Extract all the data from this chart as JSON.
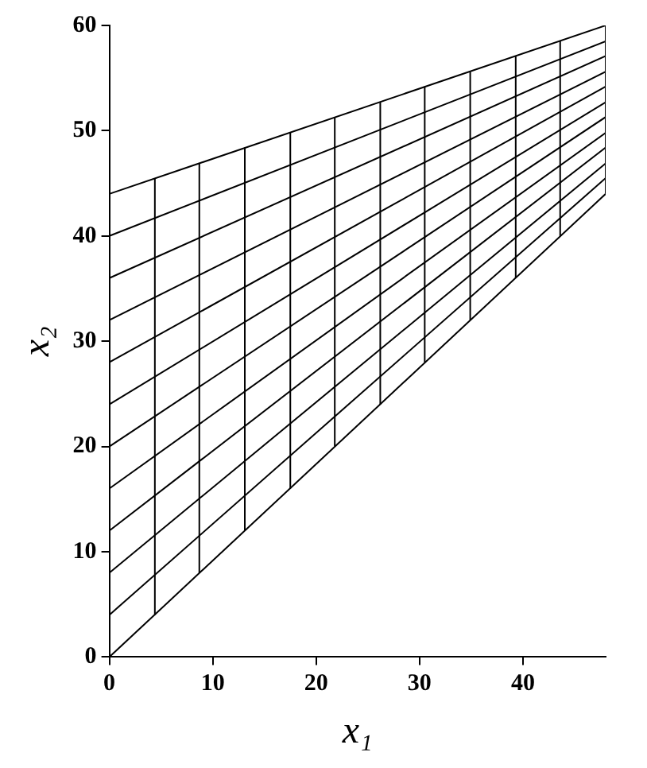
{
  "chart_data": {
    "type": "line",
    "xlabel": "x₁",
    "ylabel": "x₂",
    "xlim": [
      0,
      48
    ],
    "ylim": [
      0,
      60
    ],
    "xticks": [
      0,
      10,
      20,
      30,
      40
    ],
    "yticks": [
      0,
      10,
      20,
      30,
      40,
      50,
      60
    ],
    "grid": false,
    "legend": false,
    "marker": "none",
    "line_style": "solid",
    "series": [
      {
        "color": "#000000",
        "x": [
          0,
          48
        ],
        "values": [
          0,
          44
        ]
      },
      {
        "color": "#000000",
        "x": [
          0,
          48
        ],
        "values": [
          4,
          45.5
        ]
      },
      {
        "color": "#000000",
        "x": [
          0,
          48
        ],
        "values": [
          8,
          46.9
        ]
      },
      {
        "color": "#000000",
        "x": [
          0,
          48
        ],
        "values": [
          12,
          48.4
        ]
      },
      {
        "color": "#000000",
        "x": [
          0,
          48
        ],
        "values": [
          16,
          49.8
        ]
      },
      {
        "color": "#000000",
        "x": [
          0,
          48
        ],
        "values": [
          20,
          51.3
        ]
      },
      {
        "color": "#000000",
        "x": [
          0,
          48
        ],
        "values": [
          24,
          52.7
        ]
      },
      {
        "color": "#000000",
        "x": [
          0,
          48
        ],
        "values": [
          28,
          54.2
        ]
      },
      {
        "color": "#000000",
        "x": [
          0,
          48
        ],
        "values": [
          32,
          55.6
        ]
      },
      {
        "color": "#000000",
        "x": [
          0,
          48
        ],
        "values": [
          36,
          57.1
        ]
      },
      {
        "color": "#000000",
        "x": [
          0,
          48
        ],
        "values": [
          40,
          58.5
        ]
      },
      {
        "color": "#000000",
        "x": [
          0,
          48
        ],
        "values": [
          44,
          60
        ]
      },
      {
        "color": "#000000",
        "x": [
          4.4,
          4.4
        ],
        "values": [
          4,
          45.5
        ]
      },
      {
        "color": "#000000",
        "x": [
          8.7,
          8.7
        ],
        "values": [
          8,
          46.9
        ]
      },
      {
        "color": "#000000",
        "x": [
          13.1,
          13.1
        ],
        "values": [
          12,
          48.4
        ]
      },
      {
        "color": "#000000",
        "x": [
          17.5,
          17.5
        ],
        "values": [
          16,
          49.8
        ]
      },
      {
        "color": "#000000",
        "x": [
          21.8,
          21.8
        ],
        "values": [
          20,
          51.3
        ]
      },
      {
        "color": "#000000",
        "x": [
          26.2,
          26.2
        ],
        "values": [
          24,
          52.7
        ]
      },
      {
        "color": "#000000",
        "x": [
          30.5,
          30.5
        ],
        "values": [
          28,
          54.2
        ]
      },
      {
        "color": "#000000",
        "x": [
          34.9,
          34.9
        ],
        "values": [
          32,
          55.6
        ]
      },
      {
        "color": "#000000",
        "x": [
          39.3,
          39.3
        ],
        "values": [
          36,
          57.1
        ]
      },
      {
        "color": "#000000",
        "x": [
          43.6,
          43.6
        ],
        "values": [
          40,
          58.5
        ]
      },
      {
        "color": "#000000",
        "x": [
          48,
          48
        ],
        "values": [
          44,
          60
        ]
      }
    ]
  }
}
